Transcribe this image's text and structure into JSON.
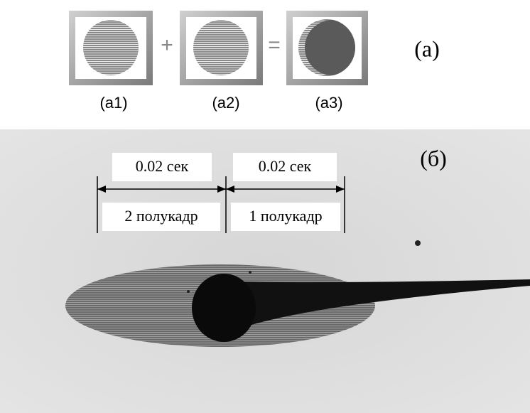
{
  "panel_a": {
    "label": "(a)",
    "operators": [
      "+",
      "="
    ],
    "frames": [
      {
        "label": "(a1)"
      },
      {
        "label": "(a2)"
      },
      {
        "label": "(a3)"
      }
    ]
  },
  "panel_b": {
    "label": "(б)",
    "intervals": [
      {
        "time": "0.02 сек",
        "frame": "2 полукадр"
      },
      {
        "time": "0.02 сек",
        "frame": "1 полукадр"
      }
    ]
  }
}
